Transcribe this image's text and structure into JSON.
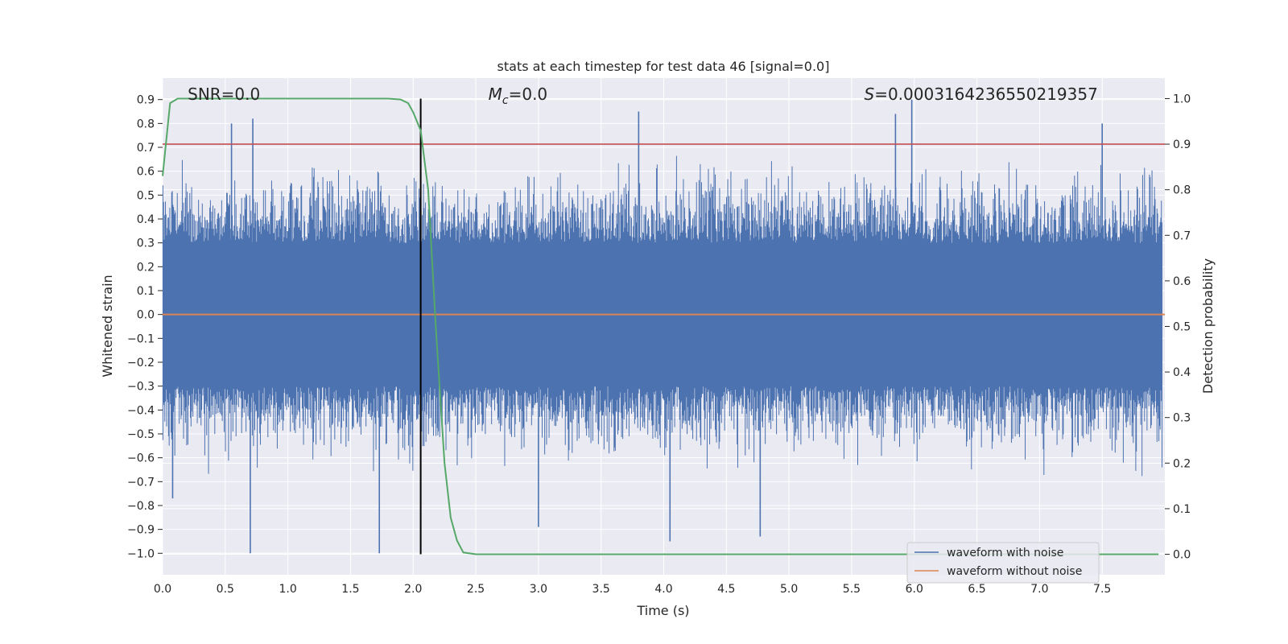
{
  "chart_data": {
    "type": "line",
    "title": "stats at each timestep for test data 46 [signal=0.0]",
    "xlabel": "Time (s)",
    "ylabel": "Whitened strain",
    "y2label": "Detection probability",
    "xlim": [
      0.0,
      8.0
    ],
    "ylim": [
      -1.09,
      0.99
    ],
    "y2lim": [
      -0.045,
      1.045
    ],
    "x_ticks": [
      0.0,
      0.5,
      1.0,
      1.5,
      2.0,
      2.5,
      3.0,
      3.5,
      4.0,
      4.5,
      5.0,
      5.5,
      6.0,
      6.5,
      7.0,
      7.5
    ],
    "y_ticks": [
      -1.0,
      -0.9,
      -0.8,
      -0.7,
      -0.6,
      -0.5,
      -0.4,
      -0.3,
      -0.2,
      -0.1,
      0.0,
      0.1,
      0.2,
      0.3,
      0.4,
      0.5,
      0.6,
      0.7,
      0.8,
      0.9
    ],
    "y2_ticks": [
      0.0,
      0.1,
      0.2,
      0.3,
      0.4,
      0.5,
      0.6,
      0.7,
      0.8,
      0.9,
      1.0
    ],
    "grid": true,
    "legend_position": "lower-right",
    "annotations": [
      {
        "text": "SNR=0.0",
        "x": 0.2,
        "y": 0.92
      },
      {
        "text": "M_c=0.0",
        "x": 2.6,
        "y": 0.92
      },
      {
        "text": "S=0.0003164236550219357",
        "x": 5.6,
        "y": 0.92
      }
    ],
    "threshold_line": {
      "y2": 0.9,
      "color": "#c44e52"
    },
    "vertical_line": {
      "x": 2.06,
      "color": "#000000"
    },
    "series": [
      {
        "name": "waveform with noise",
        "color": "#4c72b0",
        "axis": "left",
        "kind": "noise",
        "value_range": [
          -1.0,
          0.9
        ],
        "notable_peaks": [
          {
            "x": 0.72,
            "y": 0.82
          },
          {
            "x": 0.55,
            "y": 0.8
          },
          {
            "x": 3.8,
            "y": 0.85
          },
          {
            "x": 5.98,
            "y": 0.9
          },
          {
            "x": 5.85,
            "y": 0.84
          },
          {
            "x": 7.5,
            "y": 0.8
          },
          {
            "x": 0.7,
            "y": -1.0
          },
          {
            "x": 1.73,
            "y": -1.0
          },
          {
            "x": 4.05,
            "y": -0.95
          },
          {
            "x": 3.0,
            "y": -0.89
          },
          {
            "x": 4.77,
            "y": -0.93
          },
          {
            "x": 0.08,
            "y": -0.77
          }
        ]
      },
      {
        "name": "waveform without noise",
        "color": "#dd8452",
        "axis": "left",
        "kind": "line",
        "x": [
          0.0,
          8.0
        ],
        "values": [
          0.0,
          0.0
        ]
      },
      {
        "name": "",
        "color": "#55a868",
        "axis": "right",
        "kind": "line",
        "x": [
          0.0,
          0.06,
          0.12,
          0.2,
          1.6,
          1.8,
          1.9,
          1.96,
          2.0,
          2.06,
          2.12,
          2.18,
          2.25,
          2.3,
          2.35,
          2.4,
          2.5,
          7.95
        ],
        "values": [
          0.83,
          0.99,
          1.0,
          1.0,
          1.0,
          1.0,
          0.998,
          0.99,
          0.97,
          0.93,
          0.8,
          0.5,
          0.2,
          0.08,
          0.03,
          0.004,
          0.0,
          0.0
        ]
      }
    ]
  }
}
